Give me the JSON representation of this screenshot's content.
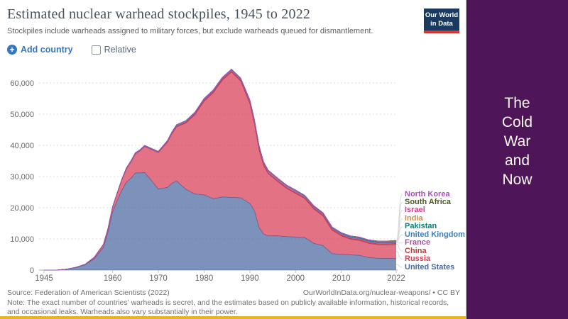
{
  "header": {
    "title": "Estimated nuclear warhead stockpiles, 1945 to 2022",
    "subtitle": "Stockpiles include warheads assigned to military forces, but exclude warheads queued for dismantlement.",
    "logo": {
      "line1": "Our World",
      "line2": "in Data"
    }
  },
  "controls": {
    "add_country_label": "Add country",
    "plus_icon_glyph": "+",
    "relative_label": "Relative",
    "relative_checked": false
  },
  "chart_data": {
    "type": "area",
    "stacked": true,
    "title": "Estimated nuclear warhead stockpiles, 1945 to 2022",
    "xlabel": "",
    "ylabel": "",
    "xlim": [
      1945,
      2022
    ],
    "ylim": [
      0,
      65000
    ],
    "grid": "horizontal-dashed",
    "legend_position": "right-of-plot-with-leader-lines",
    "yticks": [
      0,
      10000,
      20000,
      30000,
      40000,
      50000,
      60000
    ],
    "ytick_labels": [
      "0",
      "10,000",
      "20,000",
      "30,000",
      "40,000",
      "50,000",
      "60,000"
    ],
    "xticks": [
      1945,
      1960,
      1970,
      1980,
      1990,
      2000,
      2010,
      2022
    ],
    "x": [
      1945,
      1948,
      1950,
      1952,
      1954,
      1956,
      1958,
      1959,
      1960,
      1961,
      1962,
      1963,
      1964,
      1965,
      1966,
      1967,
      1968,
      1970,
      1972,
      1973,
      1974,
      1976,
      1978,
      1980,
      1982,
      1984,
      1986,
      1988,
      1990,
      1991,
      1992,
      1993,
      1994,
      1996,
      1998,
      2000,
      2002,
      2004,
      2006,
      2008,
      2010,
      2012,
      2014,
      2016,
      2018,
      2020,
      2022
    ],
    "series": [
      {
        "name": "United States",
        "color": "#4A68A1",
        "values": [
          2,
          50,
          299,
          841,
          1703,
          3692,
          7345,
          12298,
          18638,
          22229,
          25540,
          28133,
          29463,
          31139,
          31175,
          31255,
          29561,
          26008,
          26516,
          27835,
          28537,
          25914,
          24418,
          24104,
          22886,
          23459,
          23317,
          23205,
          21392,
          19008,
          13731,
          11536,
          10979,
          11011,
          10732,
          10577,
          10457,
          8570,
          7853,
          5273,
          5066,
          4881,
          4717,
          4018,
          3785,
          3750,
          3708
        ]
      },
      {
        "name": "Russia",
        "color": "#DA3B56",
        "values": [
          0,
          0,
          5,
          50,
          150,
          426,
          869,
          1060,
          1605,
          2471,
          3322,
          4238,
          5221,
          6129,
          7089,
          8339,
          9399,
          11643,
          14478,
          15915,
          17385,
          21205,
          25393,
          30062,
          33952,
          37431,
          40159,
          37333,
          32000,
          28000,
          25000,
          22000,
          20000,
          17500,
          15500,
          14000,
          12500,
          11000,
          9500,
          7500,
          5900,
          5010,
          4750,
          4550,
          4350,
          4315,
          4477
        ]
      },
      {
        "name": "China",
        "color": "#BF3B3B",
        "values": [
          0,
          0,
          0,
          0,
          0,
          0,
          0,
          0,
          0,
          0,
          0,
          0,
          1,
          5,
          20,
          25,
          35,
          75,
          130,
          150,
          170,
          190,
          200,
          205,
          235,
          241,
          224,
          232,
          232,
          234,
          234,
          234,
          234,
          234,
          232,
          232,
          235,
          235,
          235,
          235,
          240,
          250,
          260,
          260,
          280,
          320,
          350
        ]
      },
      {
        "name": "France",
        "color": "#A2559C",
        "values": [
          0,
          0,
          0,
          0,
          0,
          0,
          0,
          0,
          0,
          0,
          0,
          0,
          4,
          32,
          36,
          36,
          36,
          36,
          70,
          116,
          145,
          212,
          228,
          250,
          274,
          280,
          355,
          410,
          505,
          540,
          540,
          525,
          510,
          500,
          450,
          470,
          350,
          350,
          350,
          300,
          300,
          300,
          300,
          300,
          300,
          290,
          290
        ]
      },
      {
        "name": "United Kingdom",
        "color": "#3C7DC0",
        "values": [
          0,
          0,
          0,
          1,
          5,
          15,
          22,
          25,
          30,
          50,
          205,
          280,
          310,
          310,
          270,
          270,
          280,
          280,
          325,
          350,
          350,
          350,
          350,
          350,
          335,
          320,
          300,
          300,
          300,
          300,
          300,
          300,
          250,
          260,
          260,
          280,
          280,
          280,
          280,
          250,
          225,
          225,
          225,
          215,
          215,
          225,
          225
        ]
      },
      {
        "name": "Pakistan",
        "color": "#00847C",
        "values": [
          0,
          0,
          0,
          0,
          0,
          0,
          0,
          0,
          0,
          0,
          0,
          0,
          0,
          0,
          0,
          0,
          0,
          0,
          0,
          0,
          0,
          0,
          0,
          0,
          0,
          0,
          0,
          2,
          4,
          6,
          8,
          10,
          12,
          18,
          22,
          28,
          38,
          48,
          60,
          70,
          90,
          100,
          110,
          130,
          150,
          160,
          165
        ]
      },
      {
        "name": "India",
        "color": "#C68F55",
        "values": [
          0,
          0,
          0,
          0,
          0,
          0,
          0,
          0,
          0,
          0,
          0,
          0,
          0,
          0,
          0,
          0,
          0,
          0,
          0,
          0,
          1,
          2,
          2,
          3,
          4,
          5,
          6,
          7,
          7,
          7,
          8,
          8,
          9,
          11,
          13,
          13,
          26,
          38,
          50,
          60,
          80,
          100,
          110,
          120,
          140,
          150,
          160
        ]
      },
      {
        "name": "Israel",
        "color": "#D93A8B",
        "values": [
          0,
          0,
          0,
          0,
          0,
          0,
          0,
          0,
          0,
          0,
          0,
          0,
          0,
          0,
          0,
          2,
          5,
          8,
          13,
          15,
          17,
          21,
          25,
          31,
          35,
          40,
          44,
          48,
          53,
          55,
          57,
          59,
          61,
          64,
          68,
          72,
          76,
          78,
          80,
          80,
          80,
          80,
          80,
          80,
          84,
          90,
          90
        ]
      },
      {
        "name": "South Africa",
        "color": "#4E5827",
        "values": [
          0,
          0,
          0,
          0,
          0,
          0,
          0,
          0,
          0,
          0,
          0,
          0,
          0,
          0,
          0,
          0,
          0,
          0,
          0,
          0,
          0,
          0,
          0,
          1,
          3,
          4,
          5,
          6,
          6,
          4,
          2,
          0,
          0,
          0,
          0,
          0,
          0,
          0,
          0,
          0,
          0,
          0,
          0,
          0,
          0,
          0,
          0
        ]
      },
      {
        "name": "North Korea",
        "color": "#A652BA",
        "values": [
          0,
          0,
          0,
          0,
          0,
          0,
          0,
          0,
          0,
          0,
          0,
          0,
          0,
          0,
          0,
          0,
          0,
          0,
          0,
          0,
          0,
          0,
          0,
          0,
          0,
          0,
          0,
          0,
          0,
          0,
          0,
          0,
          0,
          0,
          0,
          0,
          0,
          0,
          2,
          2,
          4,
          6,
          8,
          10,
          15,
          20,
          25
        ]
      }
    ],
    "legend_top_to_bottom": [
      "North Korea",
      "South Africa",
      "Israel",
      "India",
      "Pakistan",
      "United Kingdom",
      "France",
      "China",
      "Russia",
      "United States"
    ]
  },
  "footer": {
    "source": "Source: Federation of American Scientists (2022)",
    "attribution": "OurWorldInData.org/nuclear-weapons/ • CC BY",
    "note": "Note: The exact number of countries' warheads is secret, and the estimates based on publicly available information, historical records, and occasional leaks. Warheads also vary substantially in their power."
  },
  "sidebar": {
    "lines": [
      "The",
      "Cold",
      "War",
      "and",
      "Now"
    ]
  },
  "colors": {
    "slide_purple": "#4E1659",
    "gold_accent": "#E3B71F",
    "owid_navy": "#1A3A5F",
    "owid_red": "#D8352E",
    "link_blue": "#3577C1"
  }
}
